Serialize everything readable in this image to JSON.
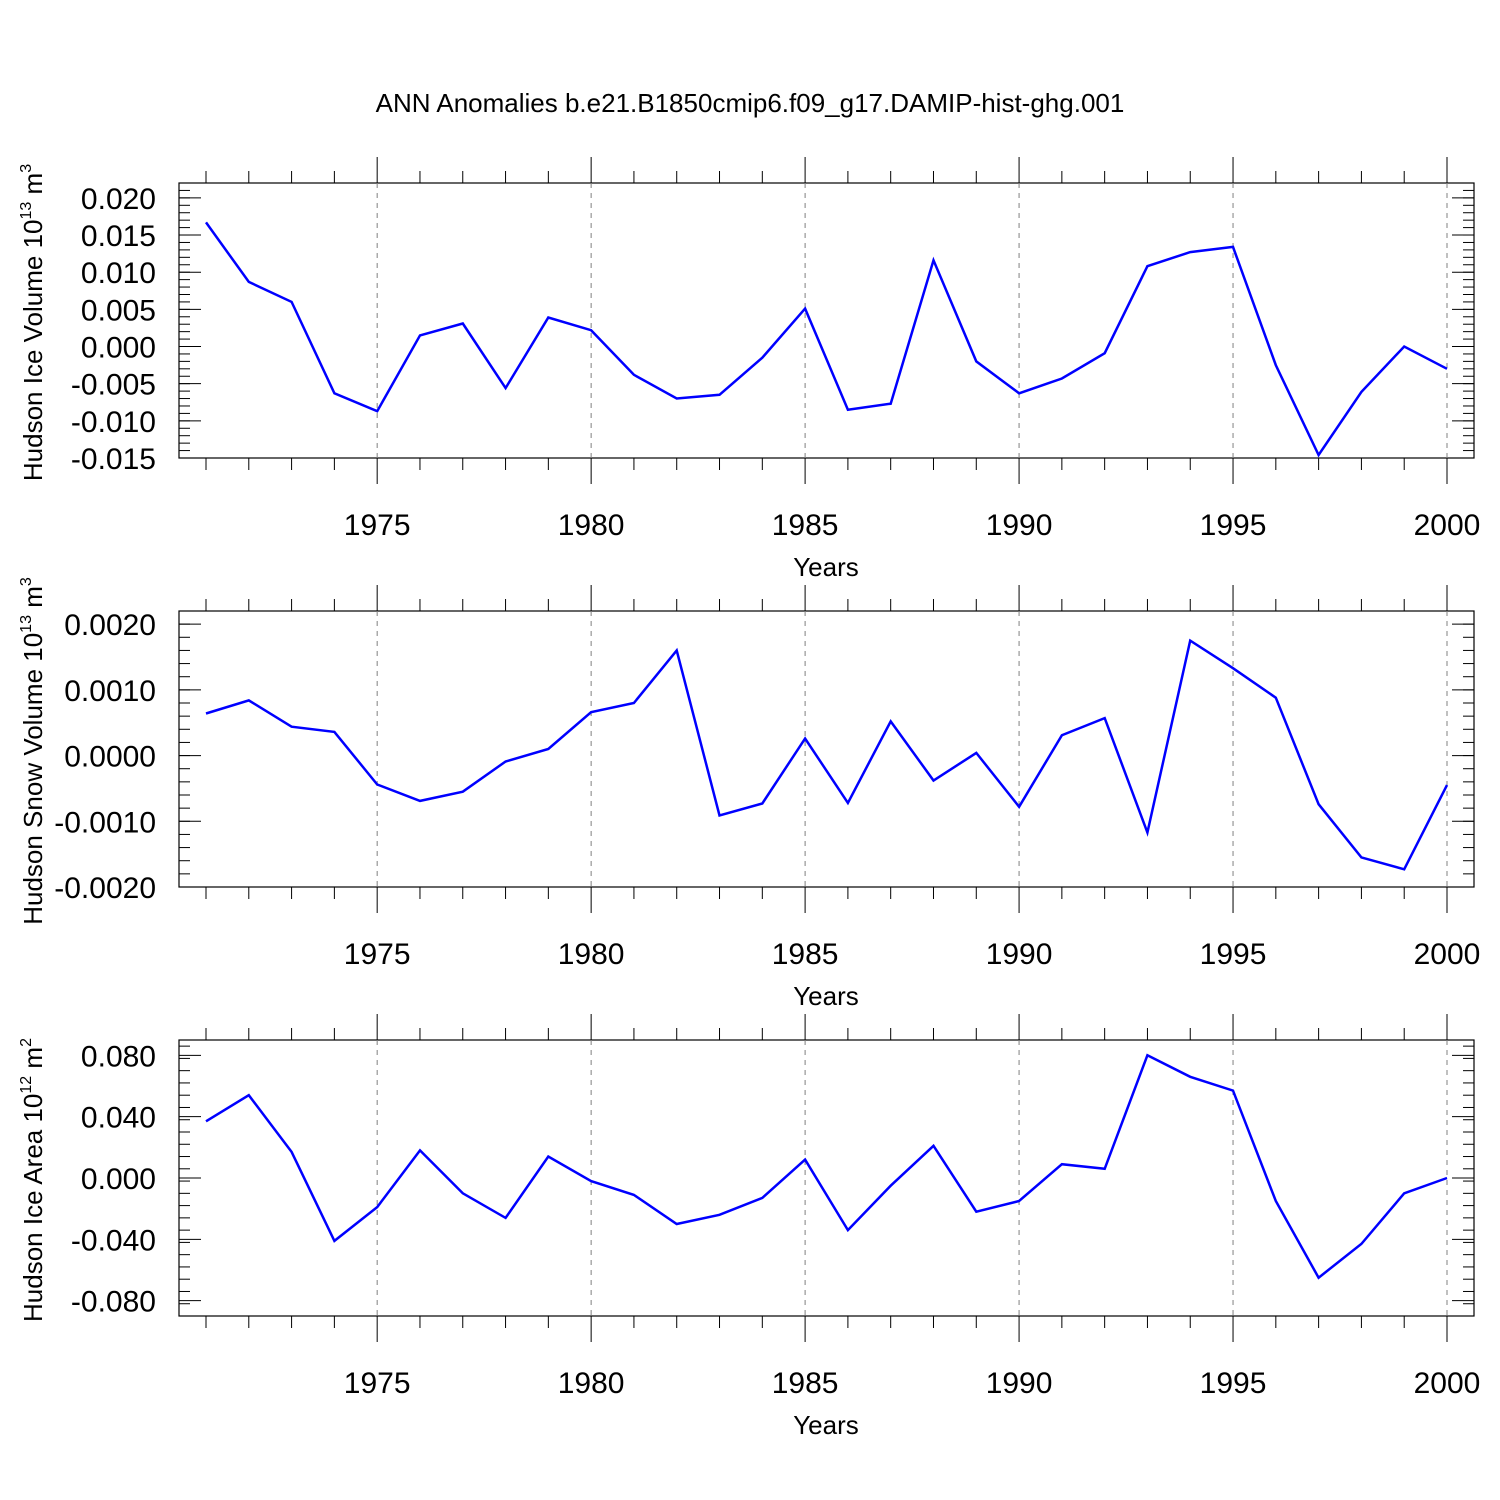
{
  "title": "ANN Anomalies b.e21.B1850cmip6.f09_g17.DAMIP-hist-ghg.001",
  "colors": {
    "line": "#0000ff",
    "axis": "#000000",
    "grid": "#808080"
  },
  "chart_data": [
    {
      "type": "line",
      "xlabel": "Years",
      "ylabel": {
        "text": "Hudson Ice Volume 10",
        "exp": "13",
        "unit": " m",
        "unit_exp": "3"
      },
      "xlim": [
        1971,
        2000
      ],
      "ylim": [
        -0.015,
        0.022
      ],
      "xticks": [
        1975,
        1980,
        1985,
        1990,
        1995,
        2000
      ],
      "xtick_labels": [
        "1975",
        "1980",
        "1985",
        "1990",
        "1995",
        "2000"
      ],
      "yticks": [
        -0.015,
        -0.01,
        -0.005,
        0.0,
        0.005,
        0.01,
        0.015,
        0.02
      ],
      "ytick_labels": [
        "-0.015",
        "-0.010",
        "-0.005",
        "0.000",
        "0.005",
        "0.010",
        "0.015",
        "0.020"
      ],
      "yminor_step": 0.001,
      "grid": "dashed vertical at major x ticks",
      "x": [
        1971,
        1972,
        1973,
        1974,
        1975,
        1976,
        1977,
        1978,
        1979,
        1980,
        1981,
        1982,
        1983,
        1984,
        1985,
        1986,
        1987,
        1988,
        1989,
        1990,
        1991,
        1992,
        1993,
        1994,
        1995,
        1996,
        1997,
        1998,
        1999,
        2000
      ],
      "values": [
        0.0167,
        0.0087,
        0.006,
        -0.0063,
        -0.0087,
        0.0015,
        0.0031,
        -0.0056,
        0.0039,
        0.0022,
        -0.0038,
        -0.007,
        -0.0065,
        -0.0015,
        0.0051,
        -0.0085,
        -0.0077,
        0.0116,
        -0.002,
        -0.0063,
        -0.0043,
        -0.0009,
        0.0108,
        0.0127,
        0.0134,
        -0.0025,
        -0.0146,
        -0.0061,
        0.0,
        -0.003
      ]
    },
    {
      "type": "line",
      "xlabel": "Years",
      "ylabel": {
        "text": "Hudson Snow Volume 10",
        "exp": "13",
        "unit": " m",
        "unit_exp": "3"
      },
      "xlim": [
        1971,
        2000
      ],
      "ylim": [
        -0.002,
        0.0022
      ],
      "xticks": [
        1975,
        1980,
        1985,
        1990,
        1995,
        2000
      ],
      "xtick_labels": [
        "1975",
        "1980",
        "1985",
        "1990",
        "1995",
        "2000"
      ],
      "yticks": [
        -0.002,
        -0.001,
        0.0,
        0.001,
        0.002
      ],
      "ytick_labels": [
        "-0.0020",
        "-0.0010",
        "0.0000",
        "0.0010",
        "0.0020"
      ],
      "yminor_step": 0.0002,
      "grid": "dashed vertical at major x ticks",
      "x": [
        1971,
        1972,
        1973,
        1974,
        1975,
        1976,
        1977,
        1978,
        1979,
        1980,
        1981,
        1982,
        1983,
        1984,
        1985,
        1986,
        1987,
        1988,
        1989,
        1990,
        1991,
        1992,
        1993,
        1994,
        1995,
        1996,
        1997,
        1998,
        1999,
        2000
      ],
      "values": [
        0.00064,
        0.00084,
        0.00044,
        0.00036,
        -0.00044,
        -0.00069,
        -0.00055,
        -9e-05,
        0.0001,
        0.00066,
        0.0008,
        0.0016,
        -0.00091,
        -0.00073,
        0.00026,
        -0.00072,
        0.00052,
        -0.00038,
        4e-05,
        -0.00078,
        0.00031,
        0.00057,
        -0.00117,
        0.00175,
        0.00133,
        0.00088,
        -0.00074,
        -0.00155,
        -0.00173,
        -0.00045
      ]
    },
    {
      "type": "line",
      "xlabel": "Years",
      "ylabel": {
        "text": "Hudson Ice Area 10",
        "exp": "12",
        "unit": " m",
        "unit_exp": "2"
      },
      "xlim": [
        1971,
        2000
      ],
      "ylim": [
        -0.09,
        0.09
      ],
      "xticks": [
        1975,
        1980,
        1985,
        1990,
        1995,
        2000
      ],
      "xtick_labels": [
        "1975",
        "1980",
        "1985",
        "1990",
        "1995",
        "2000"
      ],
      "yticks": [
        -0.08,
        -0.04,
        0.0,
        0.04,
        0.08
      ],
      "ytick_labels": [
        "-0.080",
        "-0.040",
        "0.000",
        "0.040",
        "0.080"
      ],
      "yminor_step": 0.008,
      "grid": "dashed vertical at major x ticks",
      "x": [
        1971,
        1972,
        1973,
        1974,
        1975,
        1976,
        1977,
        1978,
        1979,
        1980,
        1981,
        1982,
        1983,
        1984,
        1985,
        1986,
        1987,
        1988,
        1989,
        1990,
        1991,
        1992,
        1993,
        1994,
        1995,
        1996,
        1997,
        1998,
        1999,
        2000
      ],
      "values": [
        0.037,
        0.054,
        0.017,
        -0.041,
        -0.019,
        0.018,
        -0.01,
        -0.026,
        0.014,
        -0.002,
        -0.011,
        -0.03,
        -0.024,
        -0.013,
        0.012,
        -0.034,
        -0.005,
        0.021,
        -0.022,
        -0.015,
        0.009,
        0.006,
        0.08,
        0.066,
        0.057,
        -0.015,
        -0.065,
        -0.043,
        -0.01,
        0.0
      ]
    }
  ]
}
